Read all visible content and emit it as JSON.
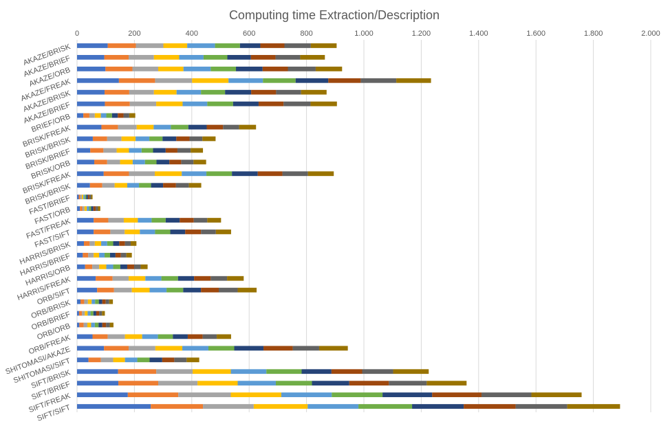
{
  "chart_data": {
    "type": "bar",
    "orientation": "horizontal",
    "stacked": true,
    "title": "Computing time Extraction/Description",
    "xlim": [
      0,
      2000
    ],
    "xticks": [
      0,
      200,
      400,
      600,
      800,
      1000,
      1200,
      1400,
      1600,
      1800,
      2000
    ],
    "xtick_labels": [
      "0",
      "200",
      "400",
      "600",
      "800",
      "1.000",
      "1.200",
      "1.400",
      "1.600",
      "1.800",
      "2.000"
    ],
    "xaxis_position": "top",
    "grid": true,
    "legend": "none",
    "series_colors": [
      "#4472c4",
      "#ed7d31",
      "#a5a5a5",
      "#ffc000",
      "#5b9bd5",
      "#70ad47",
      "#264478",
      "#9e480e",
      "#636363",
      "#997300"
    ],
    "categories": [
      "AKAZE/BRISK",
      "AKAZE/BRIEF",
      "AKAZE/ORB",
      "AKAZE/FREAK",
      "AKAZE/BRISK",
      "AKAZE/BRIEF",
      "BRIEF/ORB",
      "BRISK/FREAK",
      "BRISK/BRISK",
      "BRISK/BRIEF",
      "BRISK/ORB",
      "BRISK/FREAK",
      "BRISK/BRISK",
      "FAST/BRIEF",
      "FAST/ORB",
      "FAST/FREAK",
      "FAST/SIFT",
      "HARRIS/BRISK",
      "HARRIS/BRIEF",
      "HARRIS/ORB",
      "HARRIS/FREAK",
      "ORB/SIFT",
      "ORB/BRISK",
      "ORB/BRIEF",
      "ORB/ORB",
      "ORB/FREAK",
      "SHITOMASI/AKAZE",
      "SHITOMASI/SIFT",
      "SIFT/BRISK",
      "SIFT/BRIEF",
      "SIFT/FREAK",
      "SIFT/SIFT"
    ],
    "bar_segments": [
      [
        107,
        98,
        96,
        83,
        97,
        87,
        71,
        84,
        92,
        90
      ],
      [
        95,
        85,
        88,
        88,
        85,
        83,
        82,
        86,
        86,
        86
      ],
      [
        99,
        94,
        90,
        88,
        95,
        88,
        93,
        88,
        97,
        92
      ],
      [
        146,
        126,
        129,
        127,
        120,
        114,
        114,
        113,
        124,
        121
      ],
      [
        96,
        86,
        86,
        79,
        85,
        84,
        91,
        87,
        87,
        89
      ],
      [
        97,
        87,
        92,
        92,
        86,
        90,
        89,
        87,
        94,
        92
      ],
      [
        22,
        21,
        19,
        21,
        19,
        20,
        20,
        20,
        20,
        21
      ],
      [
        85,
        58,
        65,
        59,
        60,
        61,
        64,
        57,
        56,
        59
      ],
      [
        55,
        50,
        50,
        49,
        48,
        46,
        48,
        46,
        45,
        46
      ],
      [
        46,
        46,
        46,
        43,
        44,
        40,
        44,
        41,
        46,
        43
      ],
      [
        60,
        45,
        45,
        44,
        43,
        40,
        45,
        41,
        43,
        44
      ],
      [
        93,
        88,
        90,
        94,
        86,
        89,
        90,
        86,
        89,
        90
      ],
      [
        45,
        43,
        43,
        44,
        41,
        42,
        42,
        45,
        45,
        43
      ],
      [
        6,
        5,
        6,
        5,
        5,
        5,
        6,
        5,
        6,
        5
      ],
      [
        10,
        8,
        8,
        8,
        8,
        7,
        8,
        8,
        8,
        8
      ],
      [
        58,
        51,
        54,
        49,
        48,
        49,
        49,
        49,
        47,
        48
      ],
      [
        58,
        58,
        50,
        53,
        53,
        53,
        52,
        55,
        52,
        53
      ],
      [
        24,
        20,
        18,
        22,
        21,
        21,
        21,
        20,
        20,
        20
      ],
      [
        20,
        19,
        19,
        19,
        19,
        19,
        19,
        19,
        19,
        19
      ],
      [
        28,
        25,
        24,
        25,
        24,
        25,
        24,
        24,
        23,
        24
      ],
      [
        65,
        59,
        56,
        58,
        56,
        58,
        56,
        58,
        57,
        58
      ],
      [
        70,
        59,
        62,
        62,
        59,
        58,
        62,
        62,
        66,
        66
      ],
      [
        12,
        13,
        13,
        13,
        12,
        13,
        12,
        12,
        12,
        13
      ],
      [
        7,
        10,
        10,
        10,
        10,
        10,
        10,
        10,
        10,
        10
      ],
      [
        8,
        15,
        13,
        13,
        13,
        13,
        13,
        13,
        13,
        13
      ],
      [
        54,
        53,
        60,
        60,
        55,
        52,
        52,
        52,
        49,
        50
      ],
      [
        94,
        86,
        93,
        94,
        91,
        90,
        102,
        102,
        92,
        100
      ],
      [
        40,
        43,
        43,
        41,
        43,
        43,
        44,
        42,
        43,
        44
      ],
      [
        143,
        133,
        127,
        133,
        124,
        123,
        104,
        107,
        108,
        124
      ],
      [
        144,
        139,
        137,
        140,
        133,
        126,
        130,
        138,
        132,
        139
      ],
      [
        177,
        176,
        183,
        176,
        176,
        177,
        173,
        172,
        174,
        175
      ],
      [
        257,
        182,
        177,
        188,
        177,
        187,
        180,
        181,
        180,
        184
      ]
    ]
  }
}
